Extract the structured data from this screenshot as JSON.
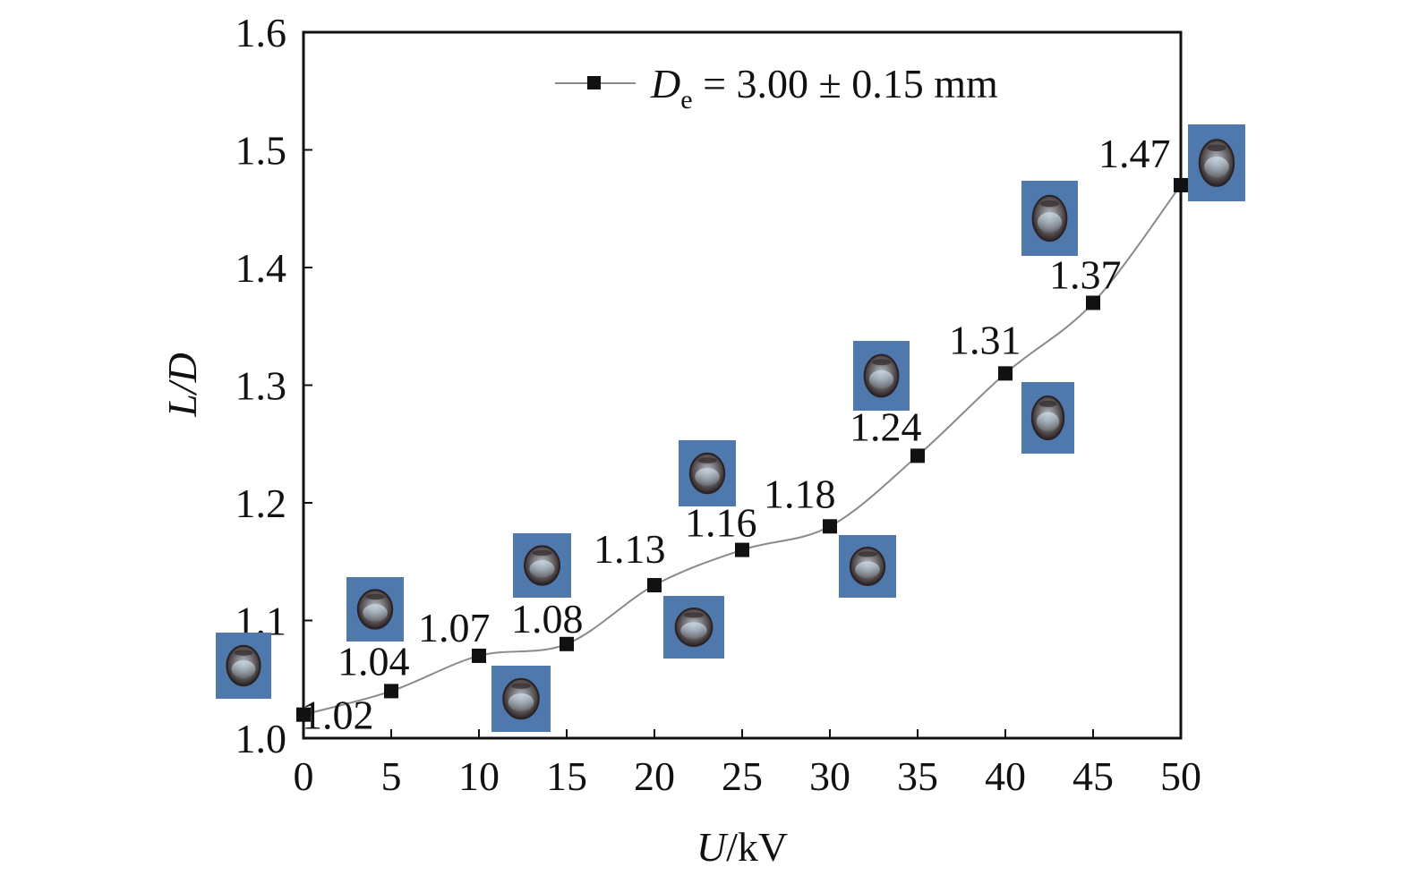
{
  "chart_data": {
    "type": "line",
    "xlabel": {
      "italic": "U",
      "rest": "/kV"
    },
    "ylabel": "L/D",
    "xlim": [
      0,
      50
    ],
    "ylim": [
      1.0,
      1.6
    ],
    "xticks": [
      "0",
      "5",
      "10",
      "15",
      "20",
      "25",
      "30",
      "35",
      "40",
      "45",
      "50"
    ],
    "yticks": [
      "1.0",
      "1.1",
      "1.2",
      "1.3",
      "1.4",
      "1.5",
      "1.6"
    ],
    "grid": false,
    "legend_position": "top",
    "series": [
      {
        "name": {
          "symbol": "D",
          "subscript": "e",
          "rest": " = 3.00 ± 0.15 mm"
        },
        "x": [
          0,
          5,
          10,
          15,
          20,
          25,
          30,
          35,
          40,
          45,
          50
        ],
        "y": [
          1.02,
          1.04,
          1.07,
          1.08,
          1.13,
          1.16,
          1.18,
          1.24,
          1.31,
          1.37,
          1.47
        ],
        "labels": [
          "1.02",
          "1.04",
          "1.07",
          "1.08",
          "1.13",
          "1.16",
          "1.18",
          "1.24",
          "1.31",
          "1.37",
          "1.47"
        ],
        "line_color": "#8a8a8a",
        "marker": "square",
        "marker_color": "#111111"
      }
    ],
    "inset_images": {
      "description_icon": "droplet-photo",
      "background_color": "#4f78ac",
      "count": 11
    }
  }
}
